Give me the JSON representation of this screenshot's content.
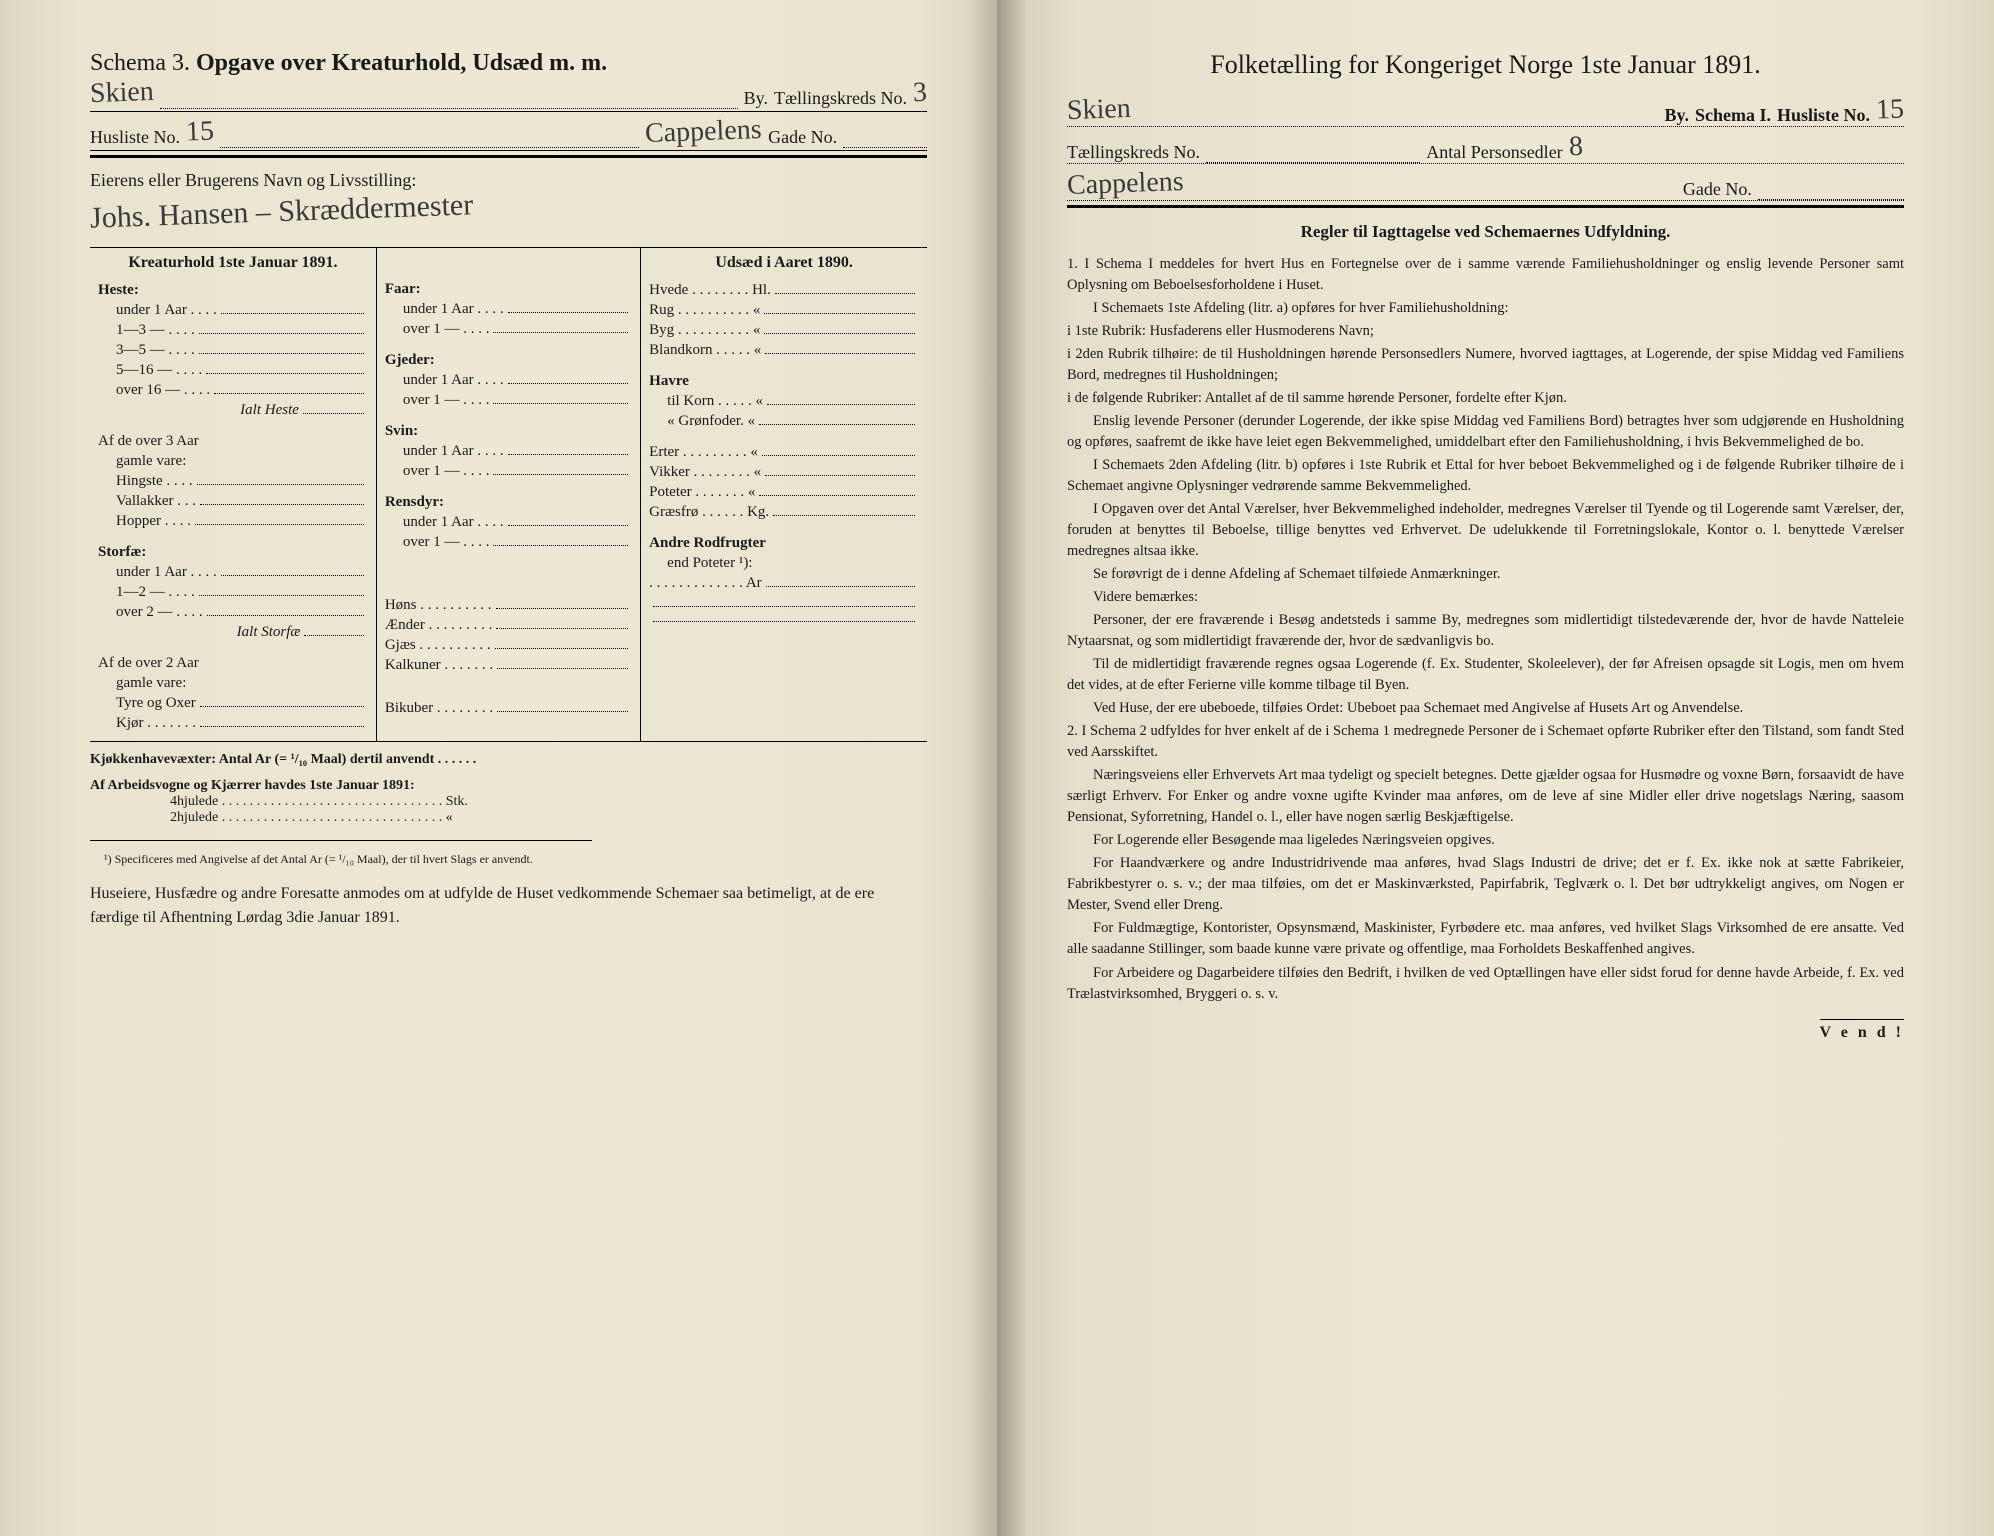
{
  "left": {
    "schemaNum": "3.",
    "schemaPrefix": "Schema",
    "title": "Opgave over Kreaturhold, Udsæd m. m.",
    "byLine": {
      "hand_city": "Skien",
      "by": "By.",
      "kreds_label": "Tællingskreds No.",
      "kreds_hand": "3"
    },
    "husliste": {
      "label": "Husliste No.",
      "hand": "15",
      "gade_hand": "Cappelens",
      "gade_label": "Gade No."
    },
    "owner_label": "Eierens eller Brugerens Navn og Livsstilling:",
    "owner_hand": "Johs. Hansen – Skræddermester",
    "col1_head": "Kreaturhold 1ste Januar 1891.",
    "col3_head": "Udsæd i Aaret 1890.",
    "heste": {
      "title": "Heste:",
      "r1": "under 1 Aar . . . .",
      "r2": "1—3   —   . . . .",
      "r3": "3—5   —   . . . .",
      "r4": "5—16  —   . . . .",
      "r5": "over 16 —   . . . .",
      "ialt": "Ialt Heste",
      "af": "Af de over 3 Aar",
      "gamle": "gamle vare:",
      "hingste": "Hingste . . . .",
      "vallakker": "Vallakker . . .",
      "hopper": "Hopper . . . ."
    },
    "storfae": {
      "title": "Storfæ:",
      "r1": "under 1 Aar . . . .",
      "r2": "1—2   —   . . . .",
      "r3": "over 2   —   . . . .",
      "ialt": "Ialt Storfæ",
      "af": "Af de over 2 Aar",
      "gamle": "gamle vare:",
      "tyre": "Tyre og Oxer",
      "kjor": "Kjør . . . . . . ."
    },
    "faar": {
      "title": "Faar:",
      "r1": "under 1 Aar . . . .",
      "r2": "over 1 —   . . . ."
    },
    "gjeder": {
      "title": "Gjeder:",
      "r1": "under 1 Aar . . . .",
      "r2": "over 1 —   . . . ."
    },
    "svin": {
      "title": "Svin:",
      "r1": "under 1 Aar . . . .",
      "r2": "over 1 —   . . . ."
    },
    "rensdyr": {
      "title": "Rensdyr:",
      "r1": "under 1 Aar . . . .",
      "r2": "over 1 —   . . . ."
    },
    "hons": "Høns . . . . . . . . . .",
    "aender": "Ænder . . . . . . . . .",
    "gjaes": "Gjæs . . . . . . . . . .",
    "kalkuner": "Kalkuner . . . . . . .",
    "bikuber": "Bikuber . . . . . . . .",
    "udsaed": {
      "hvede": "Hvede . . . . . . . . Hl.",
      "rug": "Rug . . . . . . . . . . «",
      "byg": "Byg . . . . . . . . . . «",
      "blandkorn": "Blandkorn . . . . . «",
      "havre": "Havre",
      "tilkorn": "til Korn . . . . . «",
      "gronfoder": "«   Grønfoder. «",
      "erter": "Erter . . . . . . . . . «",
      "vikker": "Vikker . . . . . . . . «",
      "poteter": "Poteter . . . . . . . «",
      "graesfro": "Græsfrø . . . . . . Kg.",
      "andre": "Andre Rodfrugter",
      "end": "end Poteter ¹):",
      "ar": ". . . . . . . . . . . . . Ar"
    },
    "kjokken": "Kjøkkenhavevæxter:   Antal Ar (= ¹/₁₀ Maal) dertil anvendt . . . . . .",
    "arbeid_label": "Af Arbeidsvogne og Kjærrer havdes 1ste Januar 1891:",
    "arbeid_4": "4hjulede . . . . . . . . . . . . . . . . . . . . . . . . . . . . . . . . Stk.",
    "arbeid_2": "2hjulede . . . . . . . . . . . . . . . . . . . . . . . . . . . . . . . .   «",
    "footnote": "¹) Specificeres med Angivelse af det Antal Ar (= ¹/₁₀ Maal), der til hvert Slags er anvendt.",
    "closing": "Huseiere, Husfædre og andre Foresatte anmodes om at udfylde de Huset vedkommende Schemaer saa betimeligt, at de ere færdige til Afhentning Lørdag 3die Januar 1891."
  },
  "right": {
    "title": "Folketælling for Kongeriget Norge 1ste Januar 1891.",
    "line1": {
      "hand": "Skien",
      "by": "By.",
      "schema": "Schema I.",
      "husliste": "Husliste No.",
      "husliste_hand": "15"
    },
    "line2": {
      "kreds": "Tællingskreds No.",
      "antal": "Antal Personsedler",
      "antal_hand": "8"
    },
    "line3": {
      "gade_hand": "Cappelens",
      "gade": "Gade No."
    },
    "regler_title": "Regler til Iagttagelse ved Schemaernes Udfyldning.",
    "rules": [
      "1. I Schema I meddeles for hvert Hus en Fortegnelse over de i samme værende Familiehusholdninger og enslig levende Personer samt Oplysning om Beboelsesforholdene i Huset.",
      "I Schemaets 1ste Afdeling (litr. a) opføres for hver Familiehusholdning:",
      "i 1ste Rubrik: Husfaderens eller Husmoderens Navn;",
      "i 2den Rubrik tilhøire: de til Husholdningen hørende Personsedlers Numere, hvorved iagttages, at Logerende, der spise Middag ved Familiens Bord, medregnes til Husholdningen;",
      "i de følgende Rubriker: Antallet af de til samme hørende Personer, fordelte efter Kjøn.",
      "Enslig levende Personer (derunder Logerende, der ikke spise Middag ved Familiens Bord) betragtes hver som udgjørende en Husholdning og opføres, saafremt de ikke have leiet egen Bekvemmelighed, umiddelbart efter den Familiehusholdning, i hvis Bekvemmelighed de bo.",
      "I Schemaets 2den Afdeling (litr. b) opføres i 1ste Rubrik et Ettal for hver beboet Bekvemmelighed og i de følgende Rubriker tilhøire de i Schemaet angivne Oplysninger vedrørende samme Bekvemmelighed.",
      "I Opgaven over det Antal Værelser, hver Bekvemmelighed indeholder, medregnes Værelser til Tyende og til Logerende samt Værelser, der, foruden at benyttes til Beboelse, tillige benyttes ved Erhvervet. De udelukkende til Forretningslokale, Kontor o. l. benyttede Værelser medregnes altsaa ikke.",
      "Se forøvrigt de i denne Afdeling af Schemaet tilføiede Anmærkninger.",
      "Videre bemærkes:",
      "Personer, der ere fraværende i Besøg andetsteds i samme By, medregnes som midlertidigt tilstedeværende der, hvor de havde Natteleie Nytaarsnat, og som midlertidigt fraværende der, hvor de sædvanligvis bo.",
      "Til de midlertidigt fraværende regnes ogsaa Logerende (f. Ex. Studenter, Skoleelever), der før Afreisen opsagde sit Logis, men om hvem det vides, at de efter Ferierne ville komme tilbage til Byen.",
      "Ved Huse, der ere ubeboede, tilføies Ordet: Ubeboet paa Schemaet med Angivelse af Husets Art og Anvendelse.",
      "2. I Schema 2 udfyldes for hver enkelt af de i Schema 1 medregnede Personer de i Schemaet opførte Rubriker efter den Tilstand, som fandt Sted ved Aarsskiftet.",
      "Næringsveiens eller Erhvervets Art maa tydeligt og specielt betegnes. Dette gjælder ogsaa for Husmødre og voxne Børn, forsaavidt de have særligt Erhverv. For Enker og andre voxne ugifte Kvinder maa anføres, om de leve af sine Midler eller drive nogetslags Næring, saasom Pensionat, Syforretning, Handel o. l., eller have nogen særlig Beskjæftigelse.",
      "For Logerende eller Besøgende maa ligeledes Næringsveien opgives.",
      "For Haandværkere og andre Industridrivende maa anføres, hvad Slags Industri de drive; det er f. Ex. ikke nok at sætte Fabrikeier, Fabrikbestyrer o. s. v.; der maa tilføies, om det er Maskinværksted, Papirfabrik, Teglværk o. l. Det bør udtrykkeligt angives, om Nogen er Mester, Svend eller Dreng.",
      "For Fuldmægtige, Kontorister, Opsynsmænd, Maskinister, Fyrbødere etc. maa anføres, ved hvilket Slags Virksomhed de ere ansatte. Ved alle saadanne Stillinger, som baade kunne være private og offentlige, maa Forholdets Beskaffenhed angives.",
      "For Arbeidere og Dagarbeidere tilføies den Bedrift, i hvilken de ved Optællingen have eller sidst forud for denne havde Arbeide, f. Ex. ved Trælastvirksomhed, Bryggeri o. s. v."
    ],
    "vend": "V e n d !"
  }
}
